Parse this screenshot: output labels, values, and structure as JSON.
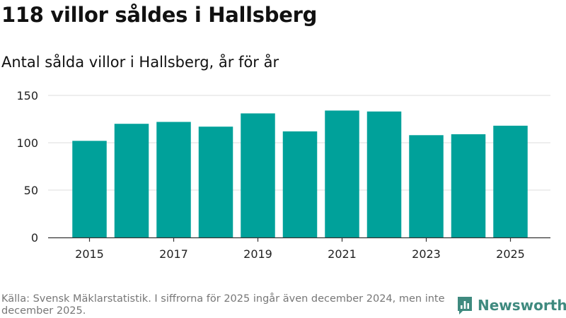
{
  "title": "118 villor såldes i Hallsberg",
  "subtitle": "Antal sålda villor i Hallsberg, år för år",
  "footer": "Källa: Svensk Mäklarstatistik. I siffrorna för 2025 ingår även december 2024, men inte december 2025.",
  "brand": "Newsworthy",
  "colors": {
    "bar": "#00a19a",
    "grid": "#dddddd",
    "axis": "#333333",
    "brand": "#3f8a7f"
  },
  "chart_data": {
    "type": "bar",
    "categories": [
      "2015",
      "2016",
      "2017",
      "2018",
      "2019",
      "2020",
      "2021",
      "2022",
      "2023",
      "2024",
      "2025"
    ],
    "x_tick_labels": [
      "2015",
      "2017",
      "2019",
      "2021",
      "2023",
      "2025"
    ],
    "values": [
      102,
      120,
      122,
      117,
      131,
      112,
      134,
      133,
      108,
      109,
      118
    ],
    "ylim": [
      0,
      150
    ],
    "y_ticks": [
      0,
      50,
      100,
      150
    ],
    "title": "118 villor såldes i Hallsberg",
    "xlabel": "",
    "ylabel": "",
    "grid": true
  }
}
